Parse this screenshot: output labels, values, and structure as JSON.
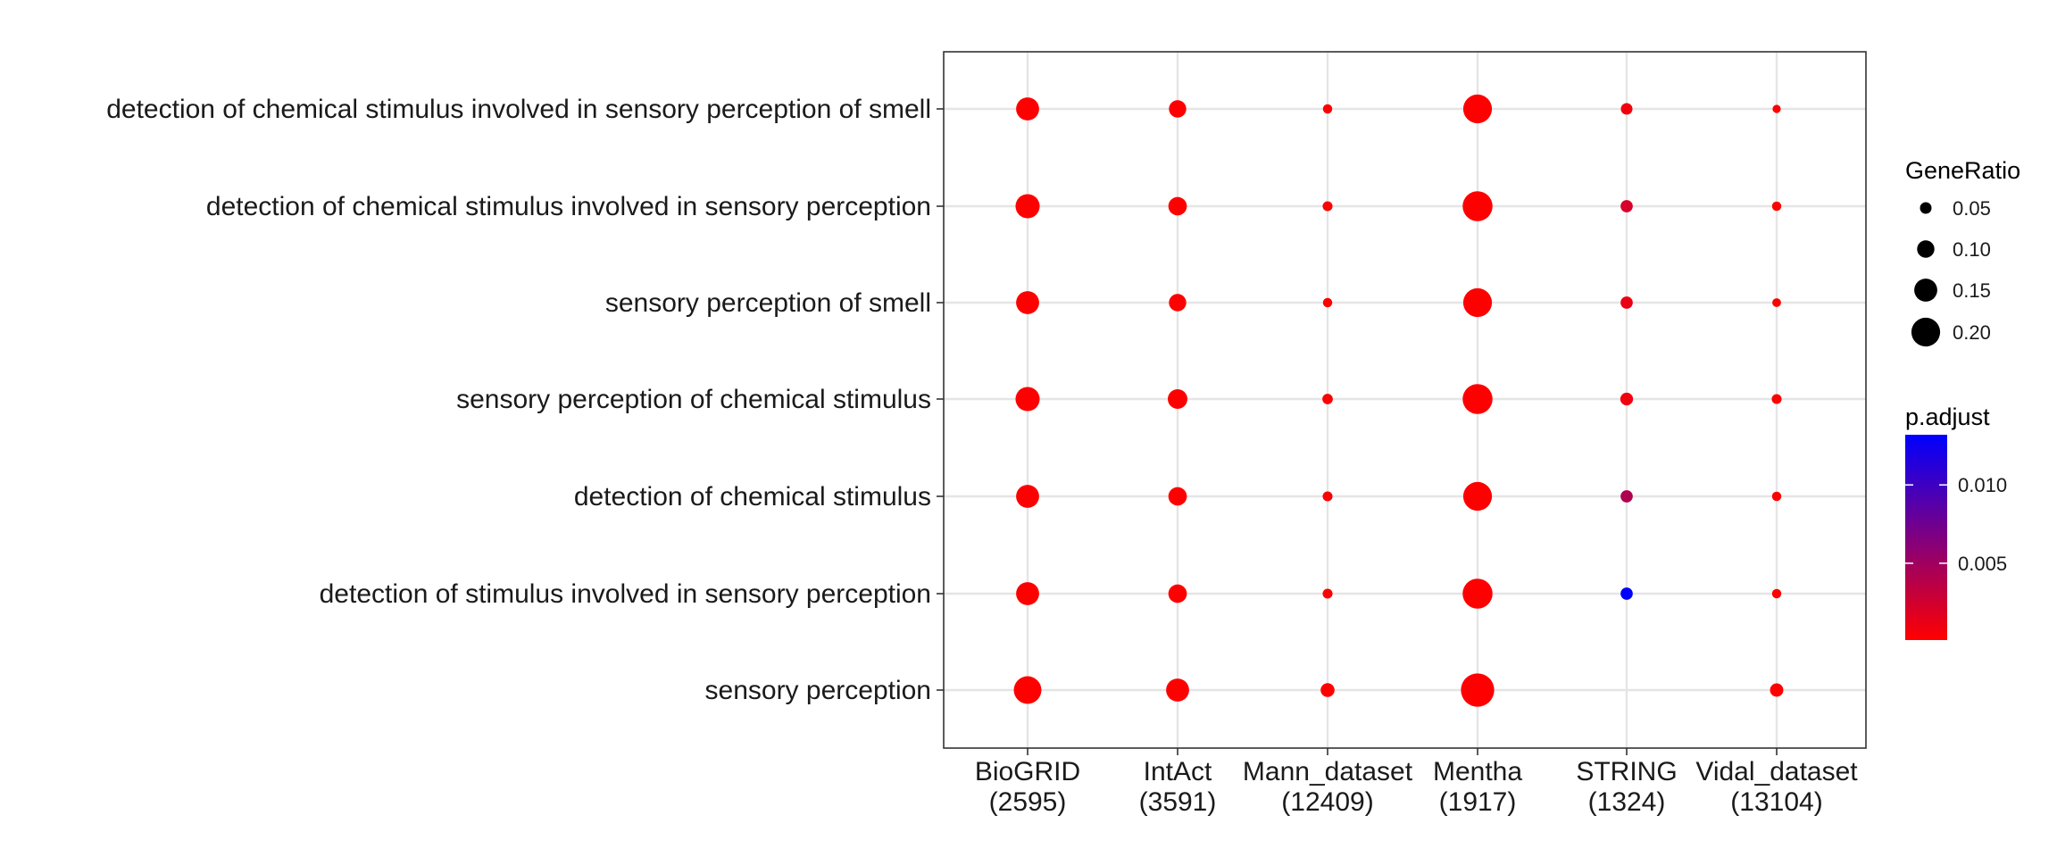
{
  "chart_data": {
    "type": "scatter",
    "subtype": "dot-plot",
    "title": "",
    "xlabel": "",
    "ylabel": "",
    "grid": true,
    "columns": [
      {
        "name": "BioGRID",
        "count": "(2595)"
      },
      {
        "name": "IntAct",
        "count": "(3591)"
      },
      {
        "name": "Mann_dataset",
        "count": "(12409)"
      },
      {
        "name": "Mentha",
        "count": "(1917)"
      },
      {
        "name": "STRING",
        "count": "(1324)"
      },
      {
        "name": "Vidal_dataset",
        "count": "(13104)"
      }
    ],
    "rows": [
      "detection of chemical stimulus involved in sensory perception of smell",
      "detection of chemical stimulus involved in sensory perception",
      "sensory perception of smell",
      "sensory perception of chemical stimulus",
      "detection of chemical stimulus",
      "detection of stimulus involved in sensory perception",
      "sensory perception"
    ],
    "points": [
      {
        "row": 0,
        "col": 0,
        "gene_ratio": 0.15,
        "p_adjust": 0.0001
      },
      {
        "row": 0,
        "col": 1,
        "gene_ratio": 0.1,
        "p_adjust": 0.0001
      },
      {
        "row": 0,
        "col": 2,
        "gene_ratio": 0.03,
        "p_adjust": 0.0002
      },
      {
        "row": 0,
        "col": 3,
        "gene_ratio": 0.2,
        "p_adjust": 0.0001
      },
      {
        "row": 0,
        "col": 4,
        "gene_ratio": 0.05,
        "p_adjust": 0.0008
      },
      {
        "row": 0,
        "col": 5,
        "gene_ratio": 0.02,
        "p_adjust": 0.0001
      },
      {
        "row": 1,
        "col": 0,
        "gene_ratio": 0.16,
        "p_adjust": 0.0001
      },
      {
        "row": 1,
        "col": 1,
        "gene_ratio": 0.11,
        "p_adjust": 0.0001
      },
      {
        "row": 1,
        "col": 2,
        "gene_ratio": 0.035,
        "p_adjust": 0.0002
      },
      {
        "row": 1,
        "col": 3,
        "gene_ratio": 0.21,
        "p_adjust": 0.0001
      },
      {
        "row": 1,
        "col": 4,
        "gene_ratio": 0.055,
        "p_adjust": 0.0022
      },
      {
        "row": 1,
        "col": 5,
        "gene_ratio": 0.03,
        "p_adjust": 0.0001
      },
      {
        "row": 2,
        "col": 0,
        "gene_ratio": 0.15,
        "p_adjust": 0.0001
      },
      {
        "row": 2,
        "col": 1,
        "gene_ratio": 0.1,
        "p_adjust": 0.0001
      },
      {
        "row": 2,
        "col": 2,
        "gene_ratio": 0.03,
        "p_adjust": 0.0002
      },
      {
        "row": 2,
        "col": 3,
        "gene_ratio": 0.2,
        "p_adjust": 0.0001
      },
      {
        "row": 2,
        "col": 4,
        "gene_ratio": 0.055,
        "p_adjust": 0.0012
      },
      {
        "row": 2,
        "col": 5,
        "gene_ratio": 0.025,
        "p_adjust": 0.0001
      },
      {
        "row": 3,
        "col": 0,
        "gene_ratio": 0.16,
        "p_adjust": 0.0001
      },
      {
        "row": 3,
        "col": 1,
        "gene_ratio": 0.12,
        "p_adjust": 0.0001
      },
      {
        "row": 3,
        "col": 2,
        "gene_ratio": 0.04,
        "p_adjust": 0.0002
      },
      {
        "row": 3,
        "col": 3,
        "gene_ratio": 0.21,
        "p_adjust": 0.0001
      },
      {
        "row": 3,
        "col": 4,
        "gene_ratio": 0.06,
        "p_adjust": 0.0008
      },
      {
        "row": 3,
        "col": 5,
        "gene_ratio": 0.035,
        "p_adjust": 0.0001
      },
      {
        "row": 4,
        "col": 0,
        "gene_ratio": 0.15,
        "p_adjust": 0.0001
      },
      {
        "row": 4,
        "col": 1,
        "gene_ratio": 0.11,
        "p_adjust": 0.0001
      },
      {
        "row": 4,
        "col": 2,
        "gene_ratio": 0.035,
        "p_adjust": 0.0002
      },
      {
        "row": 4,
        "col": 3,
        "gene_ratio": 0.2,
        "p_adjust": 0.0001
      },
      {
        "row": 4,
        "col": 4,
        "gene_ratio": 0.055,
        "p_adjust": 0.0042
      },
      {
        "row": 4,
        "col": 5,
        "gene_ratio": 0.03,
        "p_adjust": 0.0001
      },
      {
        "row": 5,
        "col": 0,
        "gene_ratio": 0.15,
        "p_adjust": 0.0001
      },
      {
        "row": 5,
        "col": 1,
        "gene_ratio": 0.11,
        "p_adjust": 0.0001
      },
      {
        "row": 5,
        "col": 2,
        "gene_ratio": 0.035,
        "p_adjust": 0.0002
      },
      {
        "row": 5,
        "col": 3,
        "gene_ratio": 0.21,
        "p_adjust": 0.0001
      },
      {
        "row": 5,
        "col": 4,
        "gene_ratio": 0.055,
        "p_adjust": 0.0132
      },
      {
        "row": 5,
        "col": 5,
        "gene_ratio": 0.03,
        "p_adjust": 0.0001
      },
      {
        "row": 6,
        "col": 0,
        "gene_ratio": 0.19,
        "p_adjust": 0.0001
      },
      {
        "row": 6,
        "col": 1,
        "gene_ratio": 0.15,
        "p_adjust": 0.0001
      },
      {
        "row": 6,
        "col": 2,
        "gene_ratio": 0.07,
        "p_adjust": 0.0001
      },
      {
        "row": 6,
        "col": 3,
        "gene_ratio": 0.24,
        "p_adjust": 0.0001
      },
      {
        "row": 6,
        "col": 5,
        "gene_ratio": 0.065,
        "p_adjust": 0.0001
      }
    ],
    "size_legend": {
      "title": "GeneRatio",
      "values": [
        0.05,
        0.1,
        0.15,
        0.2
      ],
      "labels": [
        "0.05",
        "0.10",
        "0.15",
        "0.20"
      ]
    },
    "color_legend": {
      "title": "p.adjust",
      "range": [
        0.0001,
        0.0132
      ],
      "ticks": [
        0.005,
        0.01
      ],
      "tick_labels": [
        "0.005",
        "0.010"
      ],
      "low_color": "#FF0000",
      "high_color": "#0000FF"
    },
    "legend_placement": "right"
  }
}
